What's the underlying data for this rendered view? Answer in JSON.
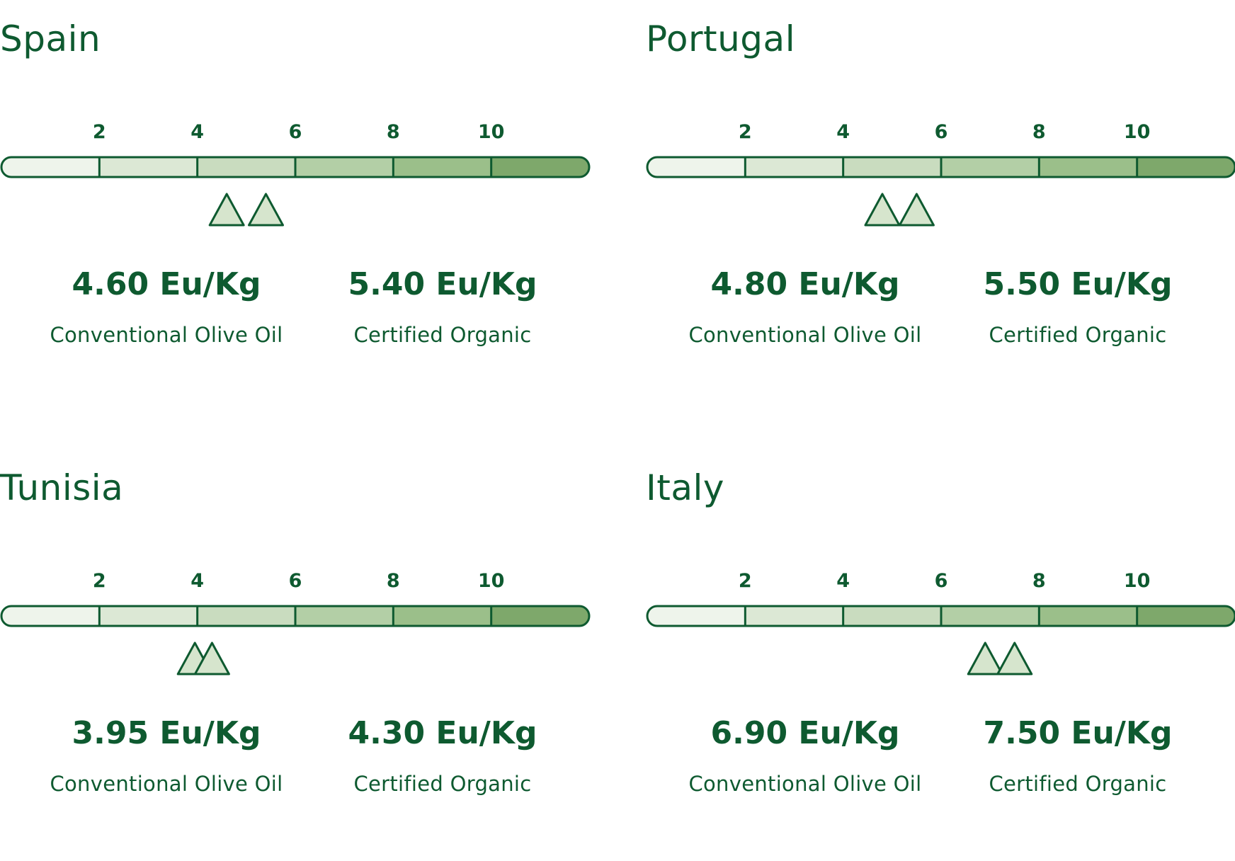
{
  "colors": {
    "accent": "#0e5a30",
    "bar_segments": [
      "#eef4eb",
      "#dce8d5",
      "#c9dcbf",
      "#b3cfa6",
      "#9bbf8a",
      "#7ea86b"
    ],
    "marker_fill": "#d6e5cd"
  },
  "chart_data": [
    {
      "type": "scale",
      "title": "Spain",
      "ticks": [
        "2",
        "4",
        "6",
        "8",
        "10"
      ],
      "range": [
        0,
        12
      ],
      "series": [
        {
          "name": "Conventional Olive Oil",
          "value": 4.6,
          "label": "4.60 Eu/Kg"
        },
        {
          "name": "Certified Organic",
          "value": 5.4,
          "label": "5.40 Eu/Kg"
        }
      ]
    },
    {
      "type": "scale",
      "title": "Portugal",
      "ticks": [
        "2",
        "4",
        "6",
        "8",
        "10"
      ],
      "range": [
        0,
        12
      ],
      "series": [
        {
          "name": "Conventional Olive Oil",
          "value": 4.8,
          "label": "4.80 Eu/Kg"
        },
        {
          "name": "Certified Organic",
          "value": 5.5,
          "label": "5.50 Eu/Kg"
        }
      ]
    },
    {
      "type": "scale",
      "title": "Tunisia",
      "ticks": [
        "2",
        "4",
        "6",
        "8",
        "10"
      ],
      "range": [
        0,
        12
      ],
      "series": [
        {
          "name": "Conventional Olive Oil",
          "value": 3.95,
          "label": "3.95 Eu/Kg"
        },
        {
          "name": "Certified Organic",
          "value": 4.3,
          "label": "4.30 Eu/Kg"
        }
      ]
    },
    {
      "type": "scale",
      "title": "Italy",
      "ticks": [
        "2",
        "4",
        "6",
        "8",
        "10"
      ],
      "range": [
        0,
        12
      ],
      "series": [
        {
          "name": "Conventional Olive Oil",
          "value": 6.9,
          "label": "6.90 Eu/Kg"
        },
        {
          "name": "Certified Organic",
          "value": 7.5,
          "label": "7.50 Eu/Kg"
        }
      ]
    }
  ]
}
